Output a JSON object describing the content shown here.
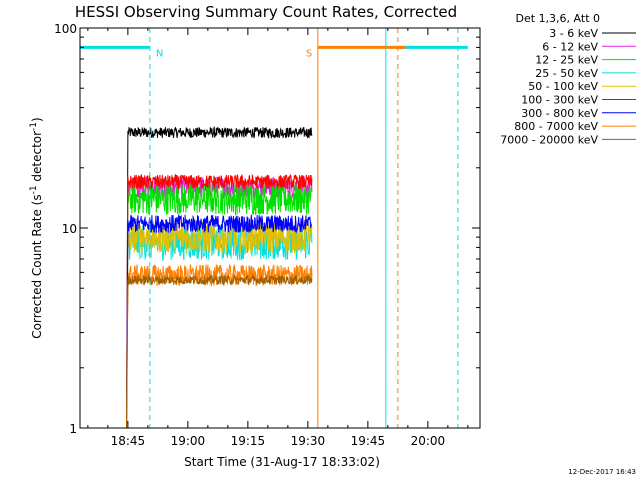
{
  "chart_data": {
    "type": "line",
    "title": "HESSI Observing Summary Count Rates, Corrected",
    "xlabel": "Start Time (31-Aug-17 18:33:02)",
    "ylabel_text": "Corrected Count Rate (s",
    "ylabel_sup": "-1",
    "ylabel_end": " detector",
    "ylabel_close": ")",
    "y_scale": "log",
    "ylim": [
      1,
      100
    ],
    "xlim": [
      "18:33:02",
      "20:13:02"
    ],
    "x_ticks": [
      "18:45",
      "19:00",
      "19:15",
      "19:30",
      "19:45",
      "20:00"
    ],
    "y_ticks": [
      "1",
      "10",
      "100"
    ],
    "legend_header": "Det 1,3,6, Att 0",
    "legend_placement": "right",
    "series": [
      {
        "name": "3 - 6 keV",
        "color": "#000000",
        "level": 30,
        "noise": 0.06
      },
      {
        "name": "6 - 12 keV",
        "color": "#e020e0",
        "level": 16,
        "noise": 0.12
      },
      {
        "name": "12 - 25 keV",
        "color": "#00e000",
        "level": 14,
        "noise": 0.18
      },
      {
        "name": "25 - 50 keV",
        "color": "#00e0e0",
        "level": 8.5,
        "noise": 0.2
      },
      {
        "name": "50 - 100 keV",
        "color": "#e0c000",
        "level": 9,
        "noise": 0.18
      },
      {
        "name": "100 - 300 keV",
        "color": "#ff0000",
        "level": 17,
        "noise": 0.08
      },
      {
        "name": "300 - 800 keV",
        "color": "#0000ff",
        "level": 10.5,
        "noise": 0.1
      },
      {
        "name": "800 - 7000 keV",
        "color": "#ff8000",
        "level": 5.8,
        "noise": 0.12
      },
      {
        "name": "7000 - 20000 keV",
        "color": "#a06000",
        "level": 5.5,
        "noise": 0.05
      }
    ],
    "data_start": "18:45:00",
    "data_end": "19:31:00",
    "flags": [
      {
        "label": "N",
        "color": "#00e0e0",
        "y": 80,
        "segments": [
          [
            "18:33:02",
            "18:50:30"
          ],
          [
            "19:52:00",
            "20:10:00"
          ]
        ]
      },
      {
        "label": "S",
        "color": "#ff8000",
        "y": 80,
        "segments": [
          [
            "19:32:30",
            "19:54:30"
          ]
        ]
      }
    ],
    "vlines": [
      {
        "t": "18:33:02",
        "color": "#00e0e0",
        "style": "solid"
      },
      {
        "t": "18:50:30",
        "color": "#00e0e0",
        "style": "dashed"
      },
      {
        "t": "19:32:30",
        "color": "#ff8000",
        "style": "solid"
      },
      {
        "t": "19:49:30",
        "color": "#00e0e0",
        "style": "solid"
      },
      {
        "t": "19:52:30",
        "color": "#ff8000",
        "style": "dashed"
      },
      {
        "t": "20:07:30",
        "color": "#00e0e0",
        "style": "dashed"
      }
    ]
  },
  "timestamp": "12-Dec-2017 16:43"
}
